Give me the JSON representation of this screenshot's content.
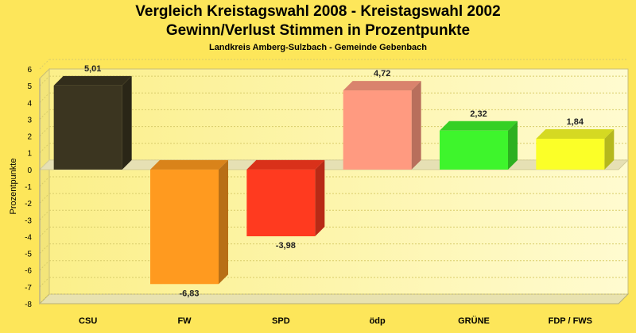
{
  "chart_data": {
    "type": "bar",
    "title": "Vergleich Kreistagswahl 2008 - Kreistagswahl 2002",
    "subtitle": "Gewinn/Verlust Stimmen in Prozentpunkte",
    "subsubtitle": "Landkreis Amberg-Sulzbach - Gemeinde Gebenbach",
    "ylabel": "Prozentpunkte",
    "xlabel": "",
    "ylim": [
      -8,
      6
    ],
    "yticks": [
      "6",
      "5",
      "4",
      "3",
      "2",
      "1",
      "0",
      "-1",
      "-2",
      "-3",
      "-4",
      "-5",
      "-6",
      "-7",
      "-8"
    ],
    "categories": [
      "CSU",
      "FW",
      "SPD",
      "ödp",
      "GRÜNE",
      "FDP / FWS"
    ],
    "values": [
      5.01,
      -6.83,
      -3.98,
      4.72,
      2.32,
      1.84
    ],
    "value_labels": [
      "5,01",
      "-6,83",
      "-3,98",
      "4,72",
      "2,32",
      "1,84"
    ],
    "colors": [
      "#3b3520",
      "#ff9a1f",
      "#ff3a1f",
      "#ff9a80",
      "#3ef52c",
      "#fbff28"
    ],
    "grid": true
  }
}
